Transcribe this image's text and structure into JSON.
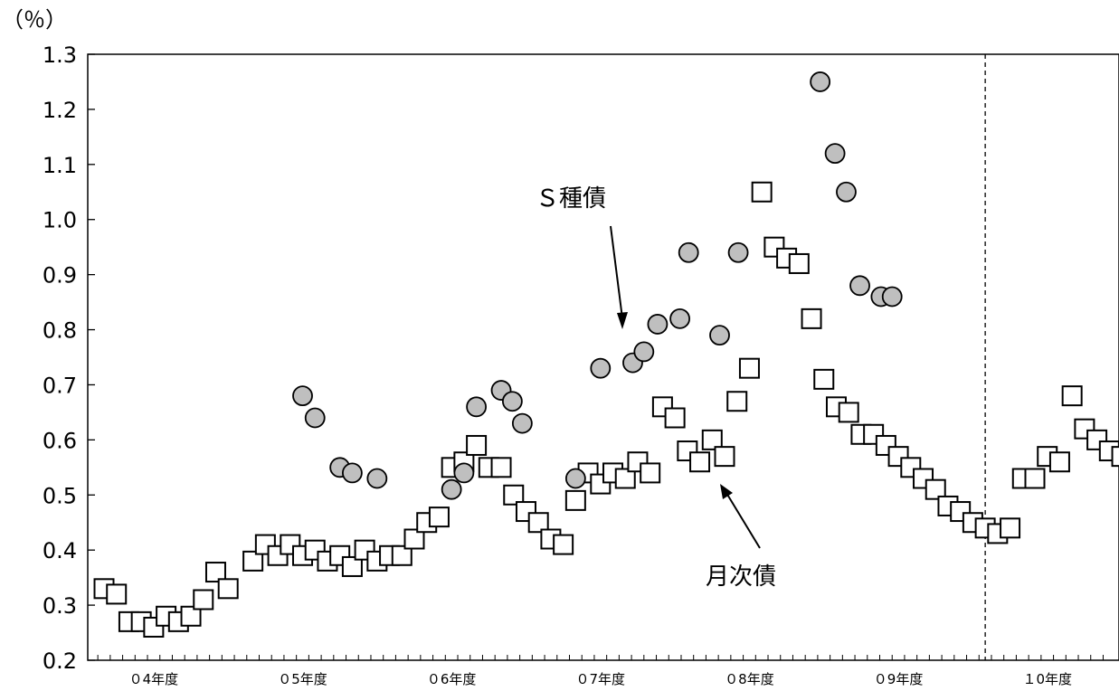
{
  "chart_data": {
    "type": "scatter",
    "title": "",
    "unit_label": "（％）",
    "xlabel": "",
    "ylabel": "",
    "ylim": [
      0.2,
      1.3
    ],
    "yticks": [
      "1.3",
      "1.2",
      "1.1",
      "1.0",
      "0.9",
      "0.8",
      "0.7",
      "0.6",
      "0.5",
      "0.4",
      "0.3",
      "0.2"
    ],
    "x_unit": "month index (0 = start of 04年度)",
    "xlim": [
      0,
      84
    ],
    "x_categories": [
      {
        "label": "０4年度",
        "start": 0
      },
      {
        "label": "０5年度",
        "start": 12
      },
      {
        "label": "０6年度",
        "start": 24
      },
      {
        "label": "０7年度",
        "start": 36
      },
      {
        "label": "０8年度",
        "start": 48
      },
      {
        "label": "０9年度",
        "start": 60
      },
      {
        "label": "１0年度",
        "start": 72
      }
    ],
    "divider_x": 71,
    "grid": false,
    "legend": "none",
    "annotations": [
      {
        "text": "Ｓ種債",
        "series": "S種債"
      },
      {
        "text": "月次債",
        "series": "月次債"
      }
    ],
    "series": [
      {
        "name": "S種債",
        "marker": "circle",
        "color": "#bfbfbf",
        "x": [
          16,
          17,
          19,
          20,
          22,
          28,
          29,
          30,
          32,
          32.9,
          33.7,
          38,
          40,
          42.6,
          43.5,
          44.6,
          46.4,
          47.1,
          49.6,
          51.1,
          57.7,
          58.9,
          59.8,
          60.9,
          62.6,
          63.5
        ],
        "y": [
          0.68,
          0.64,
          0.55,
          0.54,
          0.53,
          0.51,
          0.54,
          0.66,
          0.69,
          0.67,
          0.63,
          0.53,
          0.73,
          0.74,
          0.76,
          0.81,
          0.82,
          0.94,
          0.79,
          0.94,
          1.25,
          1.12,
          1.05,
          0.88,
          0.86,
          0.86
        ]
      },
      {
        "name": "月次債",
        "marker": "square",
        "color": "#ffffff",
        "x": [
          0,
          1,
          2,
          3,
          4,
          5,
          6,
          7,
          8,
          9,
          10,
          12,
          13,
          14,
          15,
          16,
          17,
          18,
          19,
          20,
          21,
          22,
          23,
          24,
          25,
          26,
          27,
          28,
          29,
          30,
          31,
          32,
          33,
          34,
          35,
          36,
          37,
          38,
          39,
          40,
          41,
          42,
          43,
          44,
          45,
          46,
          47,
          48,
          49,
          50,
          51,
          52,
          53,
          54,
          55,
          56,
          57,
          58,
          59,
          60,
          61,
          62,
          63,
          64,
          65,
          66,
          67,
          68,
          69,
          70,
          71,
          72,
          73,
          74,
          75,
          76,
          77,
          78,
          79,
          80,
          81,
          82
        ],
        "y": [
          0.33,
          0.32,
          0.27,
          0.27,
          0.26,
          0.28,
          0.27,
          0.28,
          0.31,
          0.36,
          0.33,
          0.38,
          0.41,
          0.39,
          0.41,
          0.39,
          0.4,
          0.38,
          0.39,
          0.37,
          0.4,
          0.38,
          0.39,
          0.39,
          0.42,
          0.45,
          0.46,
          0.55,
          0.56,
          0.59,
          0.55,
          0.55,
          0.5,
          0.47,
          0.45,
          0.42,
          0.41,
          0.49,
          0.54,
          0.52,
          0.54,
          0.53,
          0.56,
          0.54,
          0.66,
          0.64,
          0.58,
          0.56,
          0.6,
          0.57,
          0.67,
          0.73,
          1.05,
          0.95,
          0.93,
          0.92,
          0.82,
          0.71,
          0.66,
          0.65,
          0.61,
          0.61,
          0.59,
          0.57,
          0.55,
          0.53,
          0.51,
          0.48,
          0.47,
          0.45,
          0.44,
          0.43,
          0.44,
          0.53,
          0.53,
          0.57,
          0.56,
          0.68,
          0.62,
          0.6,
          0.58,
          0.57
        ]
      }
    ]
  }
}
